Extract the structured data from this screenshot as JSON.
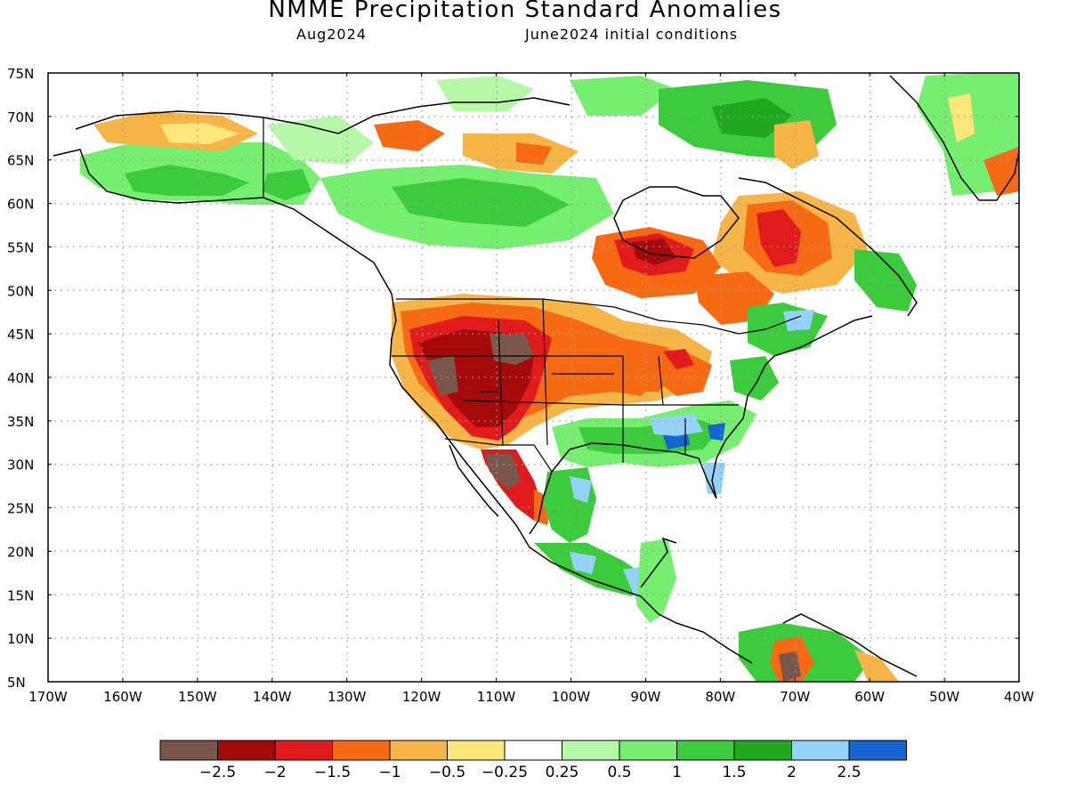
{
  "title": "NMME Precipitation Standard Anomalies",
  "subtitle_left": "Aug2024",
  "subtitle_right": "June2024 initial conditions",
  "lat_labels": [
    "75N",
    "70N",
    "65N",
    "60N",
    "55N",
    "50N",
    "45N",
    "40N",
    "35N",
    "30N",
    "25N",
    "20N",
    "15N",
    "10N",
    "5N"
  ],
  "lon_labels": [
    "170W",
    "160W",
    "150W",
    "140W",
    "130W",
    "120W",
    "110W",
    "100W",
    "90W",
    "80W",
    "70W",
    "60W",
    "50W",
    "40W"
  ],
  "colorbar": {
    "colors": [
      "#7a574b",
      "#a50a0a",
      "#e01b1b",
      "#f76a14",
      "#f7b547",
      "#fde77a",
      "#ffffff",
      "#b6f7a8",
      "#76ee6f",
      "#3ccb3c",
      "#20a920",
      "#94d2f8",
      "#1565d0"
    ],
    "labels": [
      "−2.5",
      "−2",
      "−1.5",
      "−1",
      "−0.5",
      "−0.25",
      "0.25",
      "0.5",
      "1",
      "1.5",
      "2",
      "2.5"
    ]
  },
  "map_bounds": {
    "lon_min": -170,
    "lon_max": -40,
    "lat_min": 5,
    "lat_max": 75
  }
}
